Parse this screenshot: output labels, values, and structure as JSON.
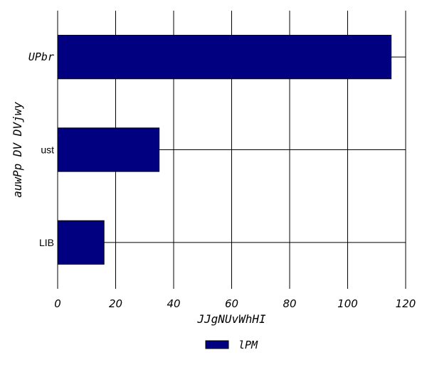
{
  "chart_data": {
    "type": "bar",
    "orientation": "horizontal",
    "categories": [
      "UPbr",
      "ust",
      "LIB"
    ],
    "series": [
      {
        "name": "lPM",
        "values": [
          115,
          35,
          16
        ]
      }
    ],
    "xlabel": "JJgNUvWhHI",
    "ylabel": "auwPp DV DVjwy",
    "xlim": [
      0,
      120
    ],
    "xticks": [
      "0",
      "20",
      "40",
      "60",
      "80",
      "100",
      "120"
    ],
    "grid": true,
    "legend_position": "bottom-center",
    "colors": {
      "bar": "#000080",
      "bar_edge": "#000000",
      "grid": "#000000"
    }
  }
}
